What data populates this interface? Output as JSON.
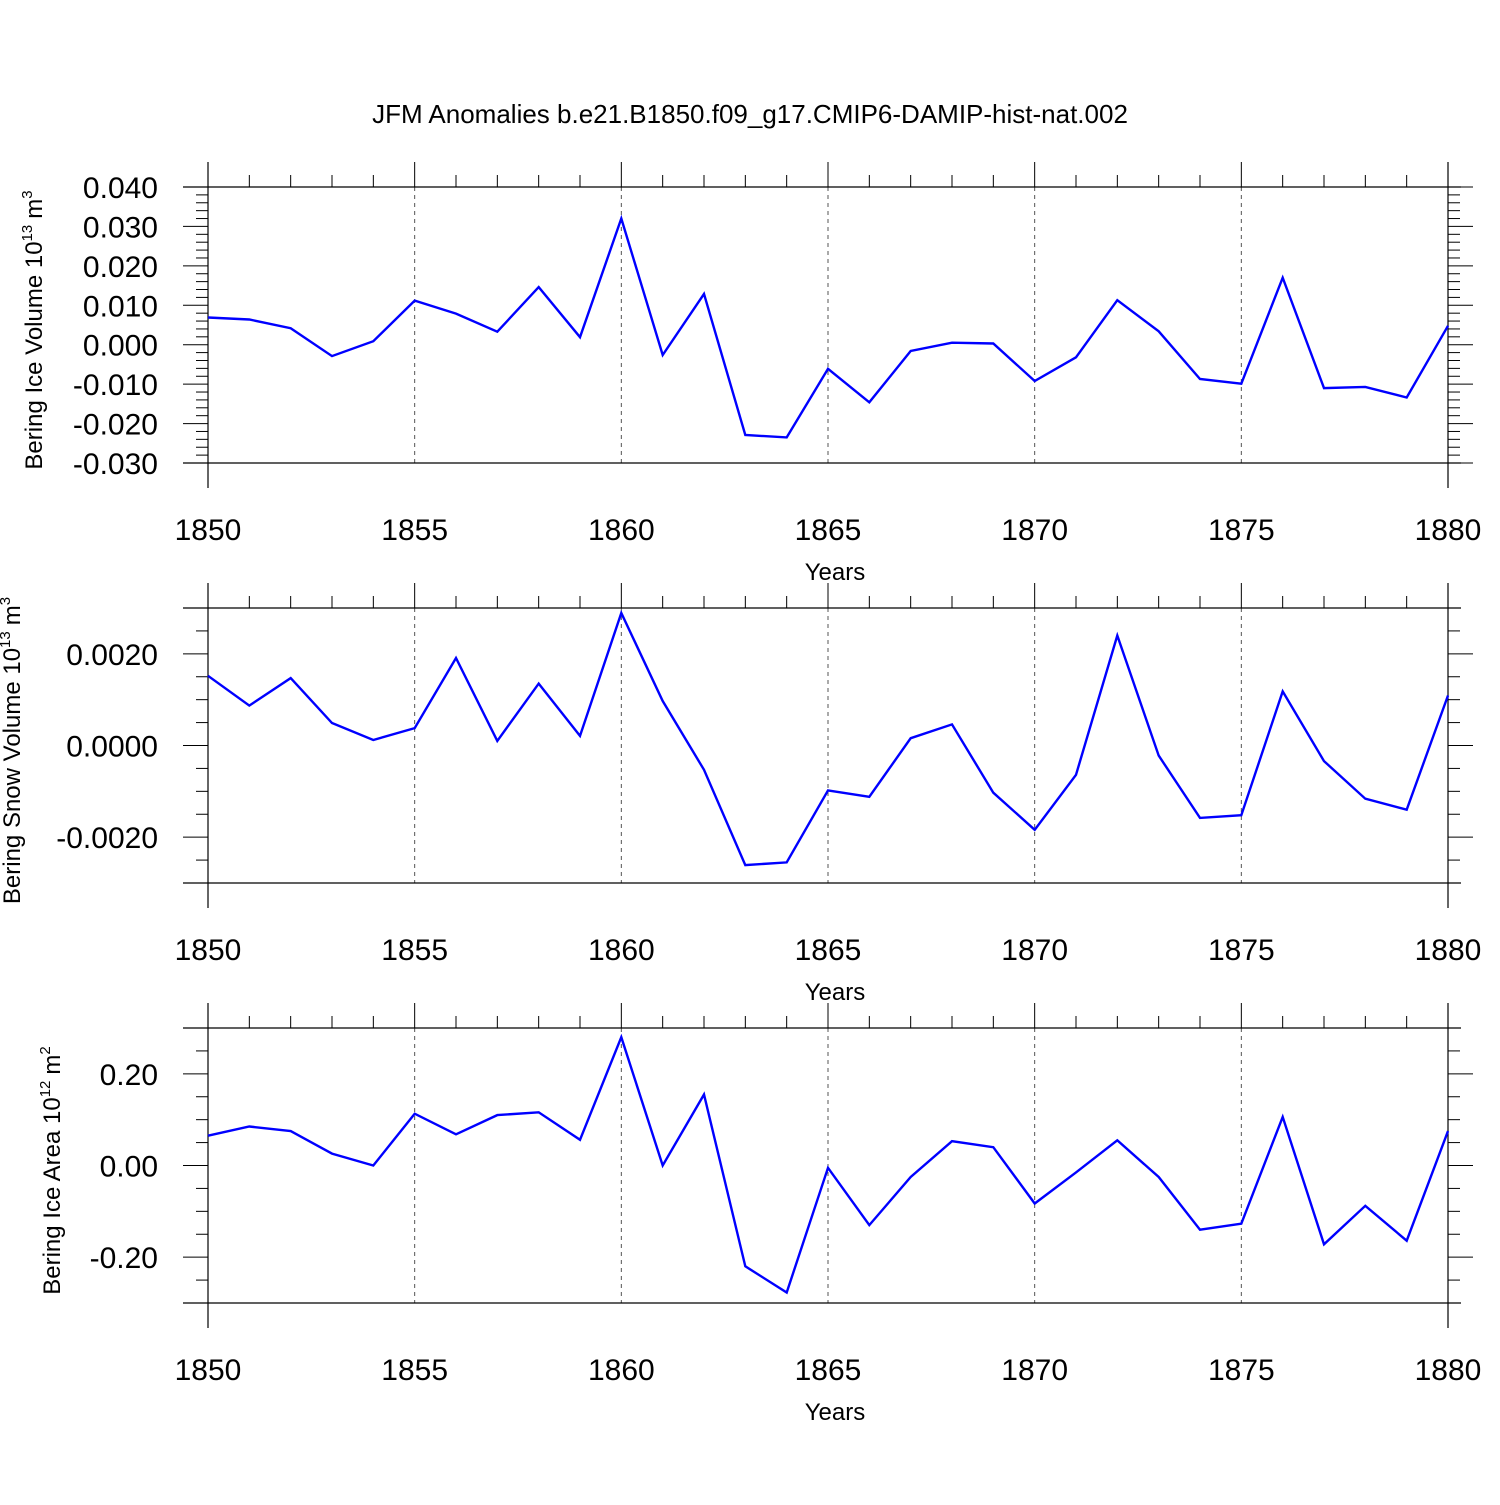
{
  "title": "JFM Anomalies b.e21.B1850.f09_g17.CMIP6-DAMIP-hist-nat.002",
  "colors": {
    "series": "#0000ff",
    "axis": "#000000",
    "grid": "#555555"
  },
  "chart_data": [
    {
      "type": "line",
      "ylabel": {
        "text": "Bering Ice Volume 10",
        "exp": "13",
        "unit": "m",
        "unit_exp": "3"
      },
      "xlabel": "Years",
      "xlim": [
        1850,
        1880
      ],
      "ylim": [
        -0.03,
        0.04
      ],
      "x_ticks": [
        1850,
        1855,
        1860,
        1865,
        1870,
        1875,
        1880
      ],
      "x_tick_labels": [
        "1850",
        "1855",
        "1860",
        "1865",
        "1870",
        "1875",
        "1880"
      ],
      "y_ticks": [
        -0.03,
        -0.02,
        -0.01,
        0.0,
        0.01,
        0.02,
        0.03,
        0.04
      ],
      "y_tick_labels": [
        "-0.030",
        "-0.020",
        "-0.010",
        "0.000",
        "0.010",
        "0.020",
        "0.030",
        "0.040"
      ],
      "y_minor_step": 0.002,
      "grid": "vertical dashed at major x ticks",
      "x": [
        1850,
        1851,
        1852,
        1853,
        1854,
        1855,
        1856,
        1857,
        1858,
        1859,
        1860,
        1861,
        1862,
        1863,
        1864,
        1865,
        1866,
        1867,
        1868,
        1869,
        1870,
        1871,
        1872,
        1873,
        1874,
        1875,
        1876,
        1877,
        1878,
        1879,
        1880
      ],
      "values": [
        0.0069,
        0.0064,
        0.0042,
        -0.0029,
        0.0009,
        0.0112,
        0.0079,
        0.0033,
        0.0146,
        0.0019,
        0.032,
        -0.0026,
        0.0129,
        -0.0229,
        -0.0235,
        -0.0061,
        -0.0146,
        -0.0016,
        0.0005,
        0.0003,
        -0.0092,
        -0.0032,
        0.0113,
        0.0034,
        -0.0087,
        -0.0099,
        0.017,
        -0.011,
        -0.0107,
        -0.0134,
        0.0048
      ]
    },
    {
      "type": "line",
      "ylabel": {
        "text": "Bering Snow Volume 10",
        "exp": "13",
        "unit": "m",
        "unit_exp": "3"
      },
      "xlabel": "Years",
      "xlim": [
        1850,
        1880
      ],
      "ylim": [
        -0.003,
        0.003
      ],
      "x_ticks": [
        1850,
        1855,
        1860,
        1865,
        1870,
        1875,
        1880
      ],
      "x_tick_labels": [
        "1850",
        "1855",
        "1860",
        "1865",
        "1870",
        "1875",
        "1880"
      ],
      "y_ticks": [
        -0.002,
        0.0,
        0.002
      ],
      "y_tick_labels": [
        "-0.0020",
        "0.0000",
        "0.0020"
      ],
      "y_minor_step": 0.0005,
      "grid": "vertical dashed at major x ticks",
      "x": [
        1850,
        1851,
        1852,
        1853,
        1854,
        1855,
        1856,
        1857,
        1858,
        1859,
        1860,
        1861,
        1862,
        1863,
        1864,
        1865,
        1866,
        1867,
        1868,
        1869,
        1870,
        1871,
        1872,
        1873,
        1874,
        1875,
        1876,
        1877,
        1878,
        1879,
        1880
      ],
      "values": [
        0.00152,
        0.00087,
        0.00147,
        0.00049,
        0.00012,
        0.00038,
        0.00191,
        0.0001,
        0.00135,
        0.00021,
        0.00289,
        0.00097,
        -0.00053,
        -0.00261,
        -0.00255,
        -0.00098,
        -0.00112,
        0.00016,
        0.00046,
        -0.00103,
        -0.00184,
        -0.00064,
        0.0024,
        -0.00022,
        -0.00158,
        -0.00152,
        0.00118,
        -0.00034,
        -0.00116,
        -0.0014,
        0.00109
      ]
    },
    {
      "type": "line",
      "ylabel": {
        "text": "Bering Ice Area 10",
        "exp": "12",
        "unit": "m",
        "unit_exp": "2"
      },
      "xlabel": "Years",
      "xlim": [
        1850,
        1880
      ],
      "ylim": [
        -0.3,
        0.3
      ],
      "x_ticks": [
        1850,
        1855,
        1860,
        1865,
        1870,
        1875,
        1880
      ],
      "x_tick_labels": [
        "1850",
        "1855",
        "1860",
        "1865",
        "1870",
        "1875",
        "1880"
      ],
      "y_ticks": [
        -0.2,
        0.0,
        0.2
      ],
      "y_tick_labels": [
        "-0.20",
        "0.00",
        "0.20"
      ],
      "y_minor_step": 0.05,
      "grid": "vertical dashed at major x ticks",
      "x": [
        1850,
        1851,
        1852,
        1853,
        1854,
        1855,
        1856,
        1857,
        1858,
        1859,
        1860,
        1861,
        1862,
        1863,
        1864,
        1865,
        1866,
        1867,
        1868,
        1869,
        1870,
        1871,
        1872,
        1873,
        1874,
        1875,
        1876,
        1877,
        1878,
        1879,
        1880
      ],
      "values": [
        0.065,
        0.085,
        0.075,
        0.026,
        0.0,
        0.113,
        0.068,
        0.11,
        0.116,
        0.056,
        0.28,
        0.0,
        0.155,
        -0.22,
        -0.277,
        -0.005,
        -0.13,
        -0.025,
        0.053,
        0.04,
        -0.083,
        -0.015,
        0.055,
        -0.025,
        -0.14,
        -0.127,
        0.106,
        -0.172,
        -0.088,
        -0.164,
        0.075
      ]
    }
  ]
}
